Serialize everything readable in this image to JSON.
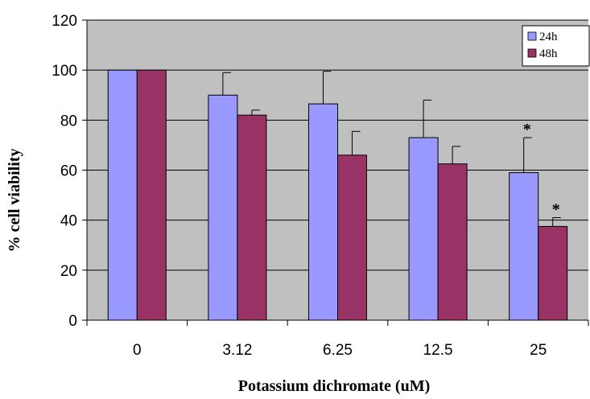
{
  "chart_data": {
    "type": "bar",
    "title": "",
    "xlabel": "Potassium dichromate (uM)",
    "ylabel": "% cell viability",
    "categories": [
      "0",
      "3.12",
      "6.25",
      "12.5",
      "25"
    ],
    "ylim": [
      0,
      120
    ],
    "yticks": [
      "0",
      "20",
      "40",
      "60",
      "80",
      "100",
      "120"
    ],
    "grid": "horizontal",
    "legend_position": "top-right",
    "series": [
      {
        "name": "24h",
        "color": "#9999ff",
        "values": [
          100,
          90,
          86.5,
          73,
          59
        ],
        "errors": [
          0,
          9,
          13,
          15,
          14
        ],
        "significance": [
          "",
          "",
          "",
          "",
          "*"
        ]
      },
      {
        "name": "48h",
        "color": "#993366",
        "values": [
          100,
          82,
          66,
          62.5,
          37.5
        ],
        "errors": [
          0,
          2,
          9.5,
          7,
          3.5
        ],
        "significance": [
          "",
          "",
          "",
          "",
          "*"
        ]
      }
    ],
    "plot_background": "#c0c0c0"
  }
}
